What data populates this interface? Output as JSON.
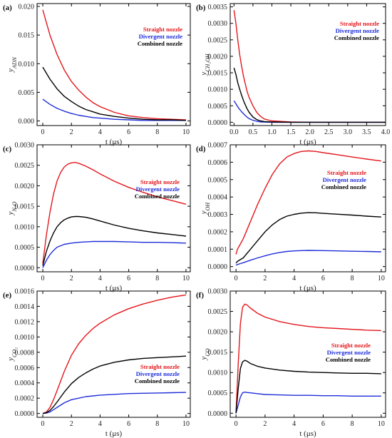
{
  "chart_data": [
    {
      "type": "line",
      "panel_label": "(a)",
      "xlabel": "t (μs)",
      "ylabel_main": "y",
      "ylabel_sub": "ADN",
      "xlim": [
        -0.4,
        10.3
      ],
      "ylim": [
        -0.0008,
        0.0205
      ],
      "xticks": [
        "0",
        "2",
        "4",
        "6",
        "8",
        "10"
      ],
      "yticks": [
        "0.000",
        "0.005",
        "0.010",
        "0.015",
        "0.020"
      ],
      "legend": "top-right",
      "series": [
        {
          "name": "Straight nozzle",
          "color": "#e3171c",
          "x": [
            0,
            0.5,
            1,
            1.5,
            2,
            2.5,
            3,
            3.5,
            4,
            5,
            6,
            7,
            8,
            9,
            10
          ],
          "values": [
            0.0194,
            0.015,
            0.0116,
            0.0089,
            0.0069,
            0.0054,
            0.0042,
            0.0032,
            0.0025,
            0.0015,
            0.0009,
            0.0006,
            0.0004,
            0.0003,
            0.0002
          ]
        },
        {
          "name": "Divergent nozzle",
          "color": "#1f2ed8",
          "x": [
            0,
            0.5,
            1,
            1.5,
            2,
            2.5,
            3,
            3.5,
            4,
            5,
            6,
            7,
            8,
            9,
            10
          ],
          "values": [
            0.0038,
            0.0029,
            0.0022,
            0.0017,
            0.0013,
            0.001,
            0.0008,
            0.0006,
            0.0005,
            0.0003,
            0.0002,
            0.0001,
            0.0001,
            0.0001,
            0.0001
          ]
        },
        {
          "name": "Combined nozzle",
          "color": "#000000",
          "x": [
            0,
            0.5,
            1,
            1.5,
            2,
            2.5,
            3,
            3.5,
            4,
            5,
            6,
            7,
            8,
            9,
            10
          ],
          "values": [
            0.0094,
            0.0073,
            0.0056,
            0.0043,
            0.0034,
            0.0026,
            0.002,
            0.0016,
            0.0012,
            0.0008,
            0.0005,
            0.0003,
            0.0002,
            0.0002,
            0.0001
          ]
        }
      ]
    },
    {
      "type": "line",
      "panel_label": "(b)",
      "xlabel": "t (μs)",
      "ylabel_main": "y",
      "ylabel_sub": "CH₂OH",
      "xlim": [
        -0.1,
        4.0
      ],
      "ylim": [
        -0.0001,
        0.0036
      ],
      "xticks": [
        "0.0",
        "0.5",
        "1.0",
        "1.5",
        "2.0",
        "2.5",
        "3.0",
        "3.5",
        "4.0"
      ],
      "yticks": [
        "0.0000",
        "0.0005",
        "0.0010",
        "0.0015",
        "0.0020",
        "0.0025",
        "0.0030",
        "0.0035"
      ],
      "legend": "top-right",
      "series": [
        {
          "name": "Straight nozzle",
          "color": "#e3171c",
          "x": [
            0,
            0.05,
            0.1,
            0.15,
            0.2,
            0.25,
            0.3,
            0.35,
            0.4,
            0.5,
            0.6,
            0.7,
            0.8,
            1.0,
            1.5,
            2,
            3,
            4
          ],
          "values": [
            0.0034,
            0.003,
            0.0025,
            0.00205,
            0.0017,
            0.0014,
            0.00115,
            0.00092,
            0.00075,
            0.0005,
            0.0003,
            0.00018,
            0.0001,
            4e-05,
            1e-05,
            0,
            0,
            0
          ]
        },
        {
          "name": "Divergent nozzle",
          "color": "#1f2ed8",
          "x": [
            0,
            0.05,
            0.1,
            0.15,
            0.2,
            0.25,
            0.3,
            0.35,
            0.4,
            0.5,
            0.6,
            0.7,
            1.0,
            1.5,
            2,
            3,
            4
          ],
          "values": [
            0.00065,
            0.00056,
            0.00047,
            0.00039,
            0.00032,
            0.00026,
            0.0002,
            0.00015,
            0.00011,
            6e-05,
            3e-05,
            1e-05,
            0,
            0,
            0,
            0,
            0
          ]
        },
        {
          "name": "Combined nozzle",
          "color": "#000000",
          "x": [
            0,
            0.05,
            0.1,
            0.15,
            0.2,
            0.25,
            0.3,
            0.35,
            0.4,
            0.5,
            0.6,
            0.7,
            0.8,
            1.0,
            1.5,
            2,
            3,
            4
          ],
          "values": [
            0.00165,
            0.00145,
            0.0012,
            0.001,
            0.00082,
            0.00066,
            0.00052,
            0.0004,
            0.0003,
            0.00016,
            8e-05,
            4e-05,
            2e-05,
            1e-05,
            0,
            0,
            0,
            0
          ]
        }
      ]
    },
    {
      "type": "line",
      "panel_label": "(c)",
      "xlabel": "t (μs)",
      "ylabel_main": "y",
      "ylabel_sub": "N₂O",
      "xlim": [
        -0.4,
        10.3
      ],
      "ylim": [
        -0.0001,
        0.003
      ],
      "xticks": [
        "0",
        "2",
        "4",
        "6",
        "8",
        "10"
      ],
      "yticks": [
        "0.0000",
        "0.0005",
        "0.0010",
        "0.0015",
        "0.0020",
        "0.0025",
        "0.0030"
      ],
      "legend": "top-right",
      "series": [
        {
          "name": "Straight nozzle",
          "color": "#e3171c",
          "x": [
            0,
            0.25,
            0.5,
            0.75,
            1,
            1.25,
            1.5,
            1.75,
            2,
            2.25,
            2.5,
            3,
            3.5,
            4,
            5,
            6,
            7,
            8,
            9,
            10
          ],
          "values": [
            0.0001,
            0.0008,
            0.00135,
            0.0018,
            0.00212,
            0.00233,
            0.00246,
            0.00253,
            0.00256,
            0.00257,
            0.00255,
            0.00248,
            0.00239,
            0.00229,
            0.00211,
            0.00196,
            0.00184,
            0.00173,
            0.00164,
            0.00155
          ]
        },
        {
          "name": "Divergent nozzle",
          "color": "#1f2ed8",
          "x": [
            0,
            0.25,
            0.5,
            0.75,
            1,
            1.5,
            2,
            2.5,
            3,
            3.5,
            4,
            4.5,
            5,
            6,
            7,
            8,
            9,
            10
          ],
          "values": [
            0,
            0.00018,
            0.00032,
            0.00042,
            0.0005,
            0.00057,
            0.0006,
            0.00062,
            0.00063,
            0.00064,
            0.00064,
            0.00064,
            0.00064,
            0.00063,
            0.00062,
            0.00062,
            0.00061,
            0.0006
          ]
        },
        {
          "name": "Combined nozzle",
          "color": "#000000",
          "x": [
            0,
            0.25,
            0.5,
            0.75,
            1,
            1.25,
            1.5,
            1.75,
            2,
            2.25,
            2.5,
            3,
            3.5,
            4,
            5,
            6,
            7,
            8,
            9,
            10
          ],
          "values": [
            5e-05,
            0.0004,
            0.00065,
            0.00085,
            0.001,
            0.0011,
            0.00117,
            0.00121,
            0.00124,
            0.00125,
            0.00125,
            0.00123,
            0.00119,
            0.00114,
            0.00104,
            0.00096,
            0.0009,
            0.00085,
            0.00081,
            0.00077
          ]
        }
      ]
    },
    {
      "type": "line",
      "panel_label": "(d)",
      "xlabel": "t (μs)",
      "ylabel_main": "y",
      "ylabel_sub": "OH",
      "xlim": [
        -0.4,
        10.3
      ],
      "ylim": [
        -3e-05,
        0.0007
      ],
      "xticks": [
        "0",
        "2",
        "4",
        "6",
        "8",
        "10"
      ],
      "yticks": [
        "0.0000",
        "0.0001",
        "0.0002",
        "0.0003",
        "0.0004",
        "0.0005",
        "0.0006",
        "0.0007"
      ],
      "legend": "center-right",
      "series": [
        {
          "name": "Straight nozzle",
          "color": "#e3171c",
          "x": [
            0,
            0.1,
            0.3,
            0.5,
            1,
            1.5,
            2,
            2.5,
            3,
            3.5,
            4,
            4.5,
            5,
            5.5,
            6,
            7,
            8,
            9,
            10
          ],
          "values": [
            7e-05,
            0.0001,
            0.00013,
            0.00016,
            0.00026,
            0.00036,
            0.00045,
            0.00053,
            0.00059,
            0.00063,
            0.00065,
            0.000662,
            0.000665,
            0.000662,
            0.000655,
            0.000643,
            0.00063,
            0.000618,
            0.000607
          ]
        },
        {
          "name": "Divergent nozzle",
          "color": "#1f2ed8",
          "x": [
            0,
            0.1,
            0.3,
            0.5,
            1,
            1.5,
            2,
            2.5,
            3,
            3.5,
            4,
            4.5,
            5,
            6,
            7,
            8,
            9,
            10
          ],
          "values": [
            8e-06,
            1.2e-05,
            1.7e-05,
            2.2e-05,
            3.7e-05,
            5e-05,
            6.2e-05,
            7.3e-05,
            8.1e-05,
            8.7e-05,
            9e-05,
            9.2e-05,
            9.3e-05,
            9.2e-05,
            9e-05,
            8.8e-05,
            8.7e-05,
            8.5e-05
          ]
        },
        {
          "name": "Combined nozzle",
          "color": "#000000",
          "x": [
            0,
            0.1,
            0.3,
            0.5,
            1,
            1.5,
            2,
            2.5,
            3,
            3.5,
            4,
            4.5,
            5,
            5.5,
            6,
            7,
            8,
            9,
            10
          ],
          "values": [
            2e-05,
            3e-05,
            4e-05,
            5e-05,
            0.0001,
            0.00015,
            0.0002,
            0.00024,
            0.00027,
            0.00029,
            0.0003,
            0.000307,
            0.00031,
            0.000309,
            0.000306,
            0.000301,
            0.000296,
            0.00029,
            0.000285
          ]
        }
      ]
    },
    {
      "type": "line",
      "panel_label": "(e)",
      "xlabel": "t (μs)",
      "ylabel_main": "y",
      "ylabel_sub": "CO₂",
      "xlim": [
        -0.4,
        10.3
      ],
      "ylim": [
        -5e-05,
        0.0016
      ],
      "xticks": [
        "0",
        "2",
        "4",
        "6",
        "8",
        "10"
      ],
      "yticks": [
        "0.0000",
        "0.0002",
        "0.0004",
        "0.0006",
        "0.0008",
        "0.0010",
        "0.0012",
        "0.0014",
        "0.0016"
      ],
      "legend": "center-right",
      "series": [
        {
          "name": "Straight nozzle",
          "color": "#e3171c",
          "x": [
            0,
            0.25,
            0.5,
            0.75,
            1,
            1.5,
            2,
            2.5,
            3,
            3.5,
            4,
            5,
            6,
            7,
            8,
            9,
            10
          ],
          "values": [
            0,
            2e-05,
            8e-05,
            0.00018,
            0.0003,
            0.00055,
            0.00076,
            0.00091,
            0.00102,
            0.00111,
            0.00118,
            0.00129,
            0.00137,
            0.00143,
            0.00148,
            0.00152,
            0.00155
          ]
        },
        {
          "name": "Divergent nozzle",
          "color": "#1f2ed8",
          "x": [
            0,
            0.25,
            0.5,
            0.75,
            1,
            1.5,
            2,
            2.5,
            3,
            3.5,
            4,
            5,
            6,
            7,
            8,
            9,
            10
          ],
          "values": [
            0,
            5e-06,
            2e-05,
            5e-05,
            8e-05,
            0.00014,
            0.00018,
            0.0002,
            0.00022,
            0.00023,
            0.00024,
            0.00025,
            0.00026,
            0.000264,
            0.000268,
            0.000272,
            0.000275
          ]
        },
        {
          "name": "Combined nozzle",
          "color": "#000000",
          "x": [
            0,
            0.25,
            0.5,
            0.75,
            1,
            1.5,
            2,
            2.5,
            3,
            3.5,
            4,
            5,
            6,
            7,
            8,
            9,
            10
          ],
          "values": [
            0,
            1e-05,
            4e-05,
            9e-05,
            0.00015,
            0.00028,
            0.00039,
            0.00047,
            0.00053,
            0.00058,
            0.00062,
            0.00067,
            0.0007,
            0.00072,
            0.00073,
            0.00074,
            0.00075
          ]
        }
      ]
    },
    {
      "type": "line",
      "panel_label": "(f)",
      "xlabel": "t (μs)",
      "ylabel_main": "y",
      "ylabel_sub": "CO",
      "xlim": [
        -0.4,
        10.3
      ],
      "ylim": [
        -0.0001,
        0.003
      ],
      "xticks": [
        "0",
        "2",
        "4",
        "6",
        "8",
        "10"
      ],
      "yticks": [
        "0.0000",
        "0.0005",
        "0.0010",
        "0.0015",
        "0.0020",
        "0.0025",
        "0.0030"
      ],
      "legend": "center-right",
      "series": [
        {
          "name": "Straight nozzle",
          "color": "#e3171c",
          "x": [
            0,
            0.15,
            0.3,
            0.45,
            0.6,
            0.75,
            1,
            1.5,
            2,
            3,
            4,
            5,
            6,
            7,
            8,
            9,
            10
          ],
          "values": [
            0,
            0.0012,
            0.0022,
            0.0026,
            0.00268,
            0.00266,
            0.00258,
            0.00245,
            0.00236,
            0.00225,
            0.00218,
            0.00213,
            0.0021,
            0.00208,
            0.00206,
            0.00204,
            0.00203
          ]
        },
        {
          "name": "Divergent nozzle",
          "color": "#1f2ed8",
          "x": [
            0,
            0.15,
            0.3,
            0.45,
            0.6,
            0.75,
            1,
            1.5,
            2,
            3,
            4,
            5,
            6,
            7,
            8,
            9,
            10
          ],
          "values": [
            0,
            0.0002,
            0.0004,
            0.0005,
            0.00052,
            0.00051,
            0.0005,
            0.00048,
            0.00046,
            0.00045,
            0.00044,
            0.00044,
            0.00043,
            0.00043,
            0.00042,
            0.00042,
            0.00042
          ]
        },
        {
          "name": "Combined nozzle",
          "color": "#000000",
          "x": [
            0,
            0.15,
            0.3,
            0.45,
            0.6,
            0.75,
            1,
            1.5,
            2,
            3,
            4,
            5,
            6,
            7,
            8,
            9,
            10
          ],
          "values": [
            0,
            0.0006,
            0.0011,
            0.00126,
            0.0013,
            0.00128,
            0.00122,
            0.00115,
            0.00111,
            0.00106,
            0.00103,
            0.00101,
            0.001,
            0.00099,
            0.00098,
            0.00098,
            0.00097
          ]
        }
      ]
    }
  ]
}
